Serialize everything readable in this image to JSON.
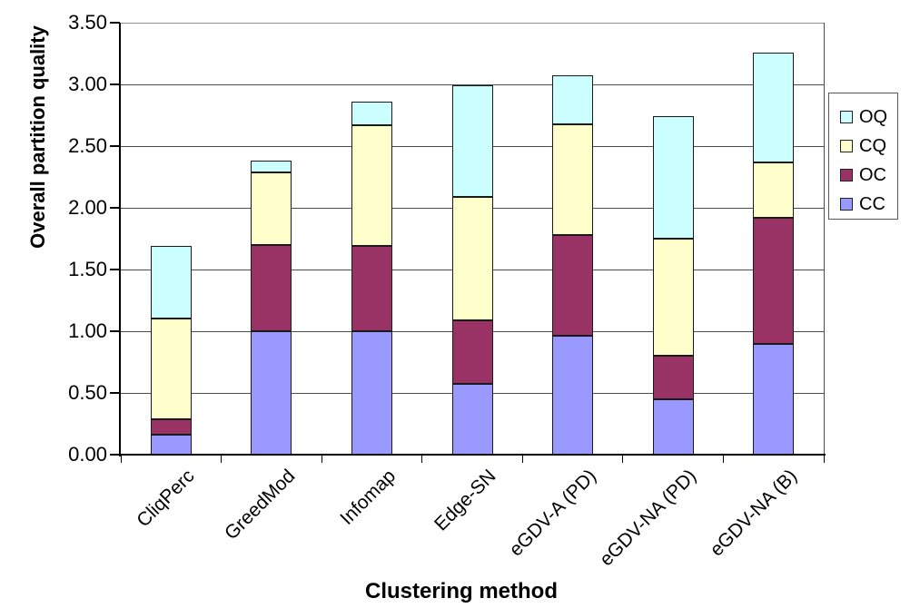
{
  "chart_data": {
    "type": "bar",
    "stacked": true,
    "title": "",
    "xlabel": "Clustering method",
    "ylabel": "Overall partition quality",
    "categories": [
      "CliqPerc",
      "GreedMod",
      "Infomap",
      "Edge-SN",
      "eGDV-A (PD)",
      "eGDV-NA (PD)",
      "eGDV-NA (B)"
    ],
    "series": [
      {
        "name": "CC",
        "color": "#9999FF",
        "values": [
          0.16,
          1.0,
          1.0,
          0.57,
          0.96,
          0.45,
          0.9
        ]
      },
      {
        "name": "OC",
        "color": "#993366",
        "values": [
          0.13,
          0.7,
          0.69,
          0.52,
          0.82,
          0.35,
          1.02
        ]
      },
      {
        "name": "CQ",
        "color": "#FFFFCC",
        "values": [
          0.81,
          0.59,
          0.98,
          1.0,
          0.9,
          0.95,
          0.45
        ]
      },
      {
        "name": "OQ",
        "color": "#CCFFFF",
        "values": [
          0.59,
          0.09,
          0.19,
          0.9,
          0.39,
          0.99,
          0.89
        ]
      }
    ],
    "stack_totals": [
      1.69,
      2.38,
      2.86,
      2.99,
      3.07,
      2.74,
      3.26
    ],
    "ylim": [
      0,
      3.5
    ],
    "ytick_step": 0.5,
    "ytick_labels": [
      "0.00",
      "0.50",
      "1.00",
      "1.50",
      "2.00",
      "2.50",
      "3.00",
      "3.50"
    ],
    "grid": true,
    "legend": {
      "position": "right",
      "order": [
        "OQ",
        "CQ",
        "OC",
        "CC"
      ]
    }
  }
}
